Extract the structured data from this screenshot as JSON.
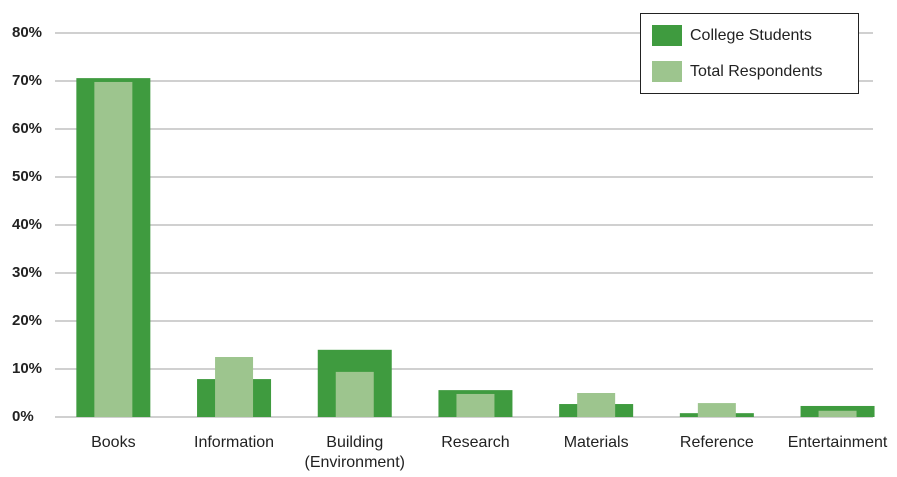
{
  "chart_data": {
    "type": "bar",
    "categories": [
      "Books",
      "Information",
      "Building (Environment)",
      "Research",
      "Materials",
      "Reference",
      "Entertainment"
    ],
    "series": [
      {
        "name": "College Students",
        "color": "#3f9b3f",
        "values": [
          70.6,
          7.9,
          14.0,
          5.6,
          2.7,
          0.8,
          2.3
        ]
      },
      {
        "name": "Total Respondents",
        "color": "#9dc58e",
        "values": [
          69.8,
          12.5,
          9.4,
          4.8,
          5.0,
          2.9,
          1.3
        ]
      }
    ],
    "ylim": [
      0,
      80
    ],
    "yticks": [
      {
        "value": 0,
        "label": "0%"
      },
      {
        "value": 10,
        "label": "10%"
      },
      {
        "value": 20,
        "label": "20%"
      },
      {
        "value": 30,
        "label": "30%"
      },
      {
        "value": 40,
        "label": "40%"
      },
      {
        "value": 50,
        "label": "50%"
      },
      {
        "value": 60,
        "label": "60%"
      },
      {
        "value": 70,
        "label": "70%"
      },
      {
        "value": 80,
        "label": "80%"
      }
    ],
    "grid": true,
    "legend": "upper right"
  }
}
